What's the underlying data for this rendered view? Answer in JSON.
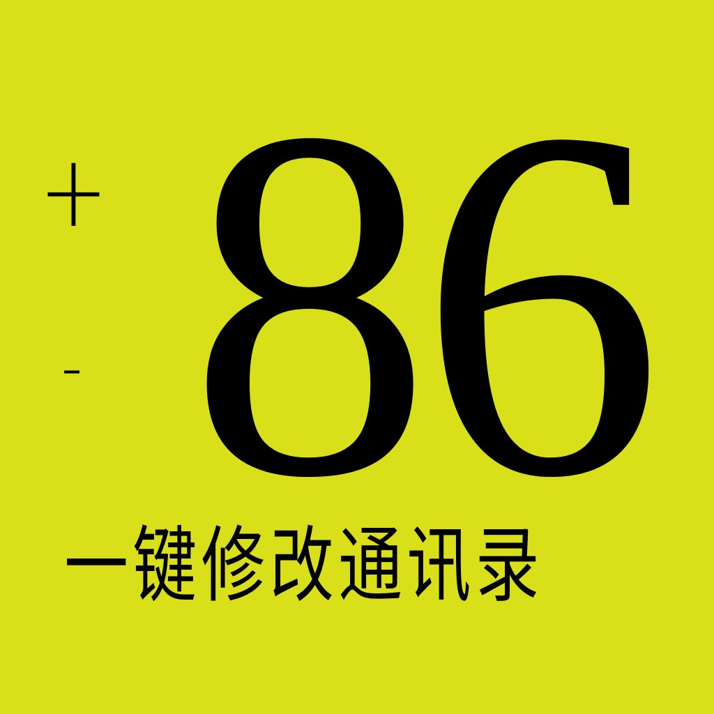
{
  "background_color": "#d9e01a",
  "text_color": "#000000",
  "symbols": {
    "plus": "+",
    "minus": "-"
  },
  "country_code": "86",
  "tagline": "一键修改通讯录"
}
